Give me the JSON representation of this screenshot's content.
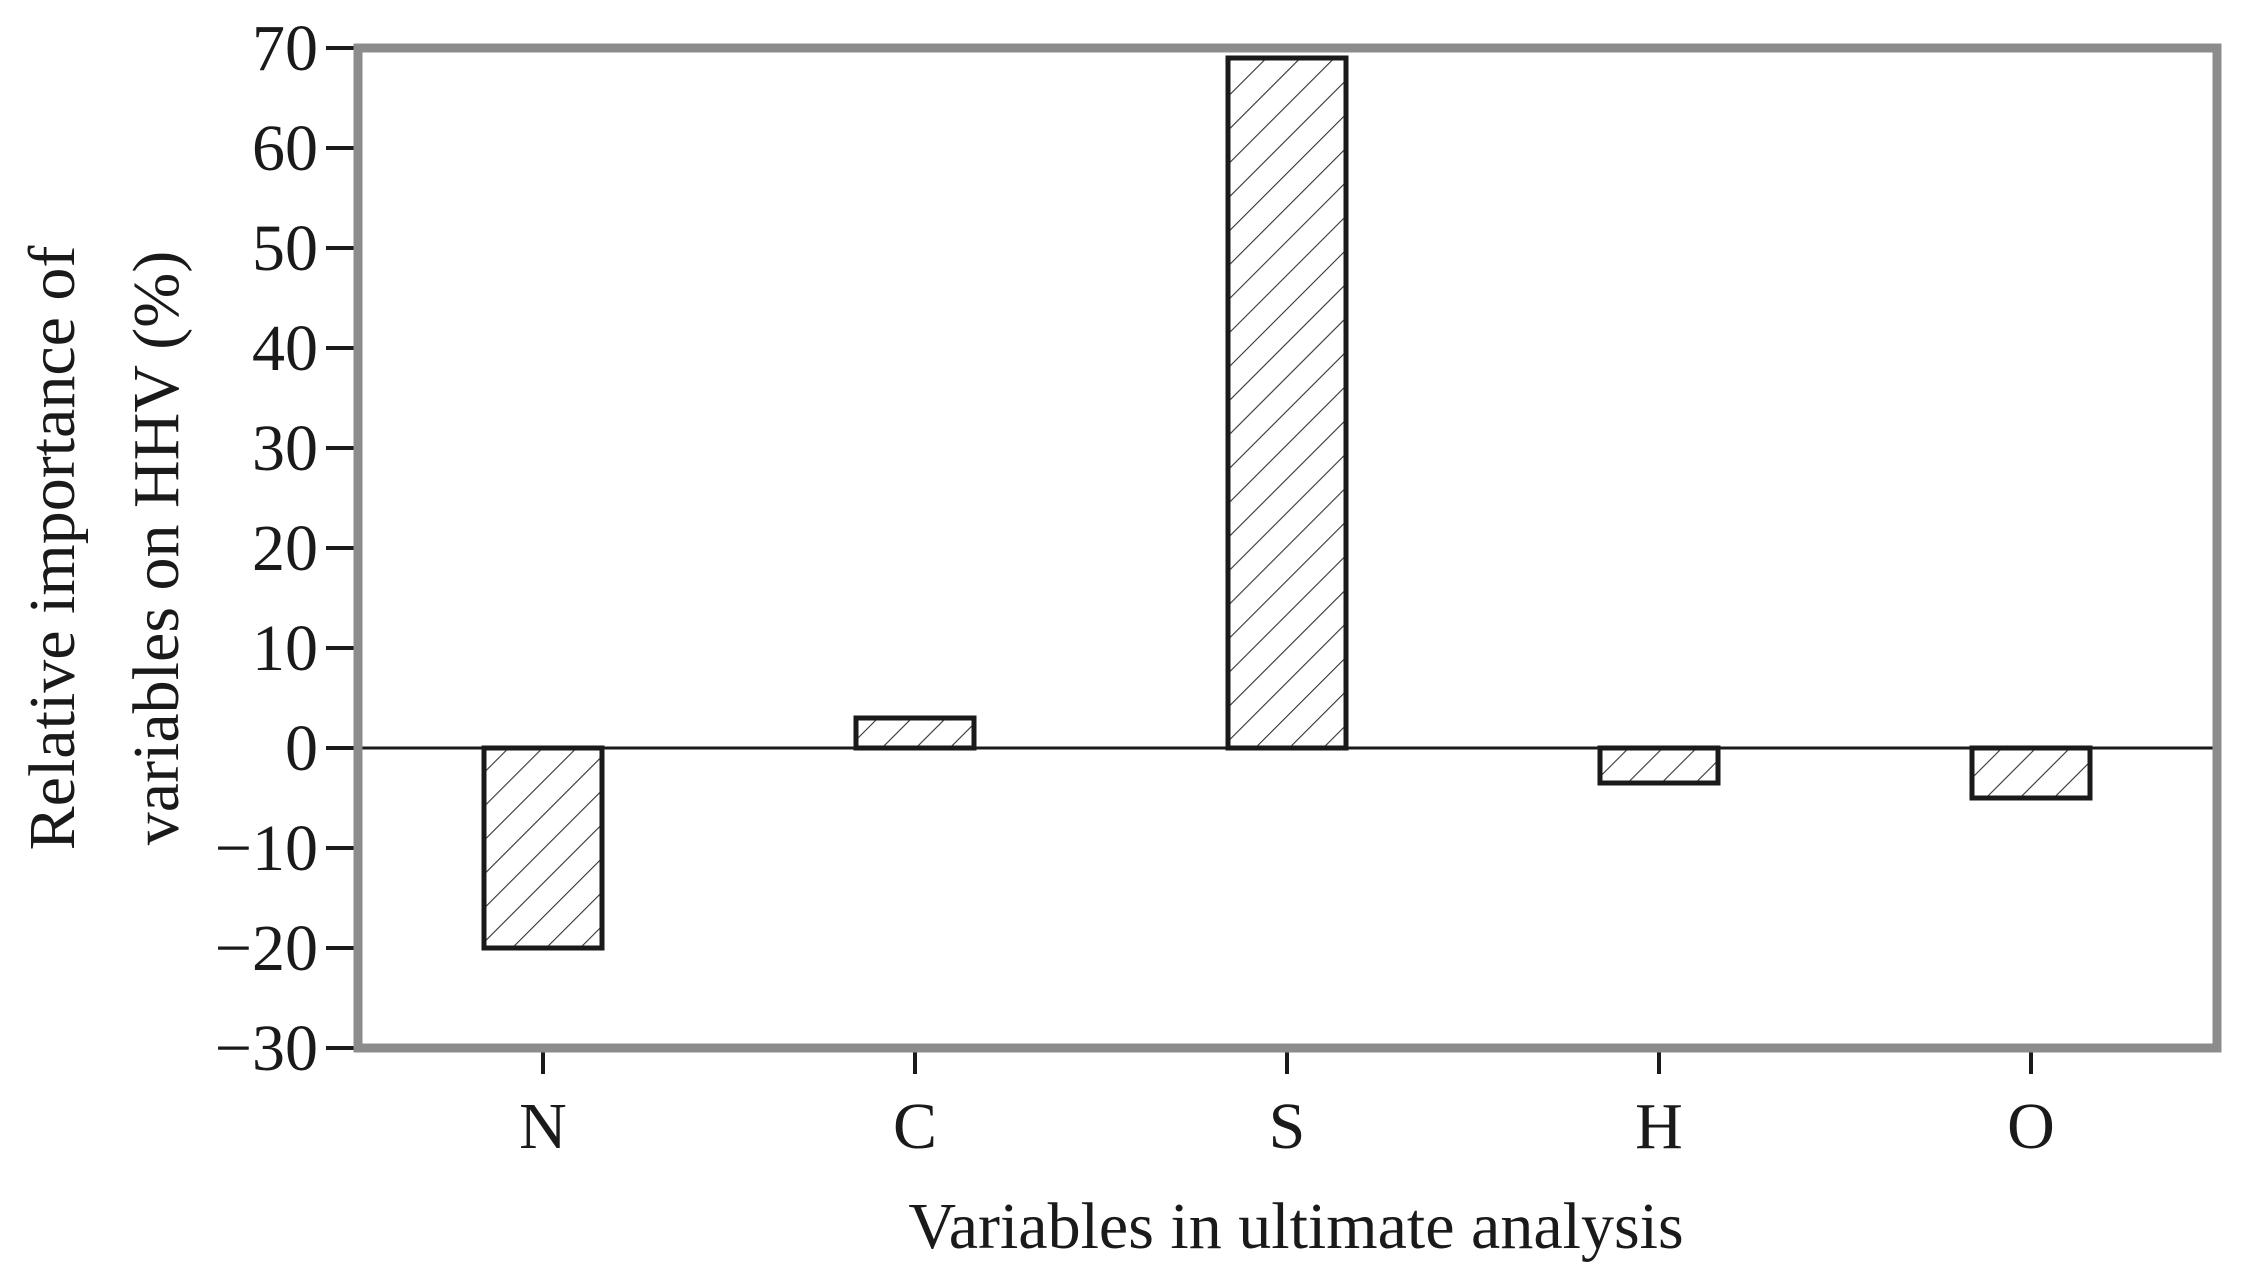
{
  "chart_data": {
    "type": "bar",
    "title": "",
    "xlabel": "Variables in ultimate analysis",
    "ylabel_lines": [
      "Relative importance of",
      "variables on HHV (%)"
    ],
    "categories": [
      "N",
      "C",
      "S",
      "H",
      "O"
    ],
    "values": [
      -20,
      3,
      69,
      -3.5,
      -5
    ],
    "ylim": [
      -30,
      70
    ],
    "yticks": [
      70,
      60,
      50,
      40,
      30,
      20,
      10,
      0,
      -10,
      -20,
      -30
    ],
    "ytick_labels": [
      "70",
      "60",
      "50",
      "40",
      "30",
      "20",
      "10",
      "0",
      "−10",
      "−20",
      "−30"
    ],
    "grid": false,
    "legend": "none",
    "bar_fill": "hatched",
    "colors": {
      "frame": "#8c8c8c",
      "bar_edge": "#1a1a1a",
      "hatch": "#333333",
      "zero_line": "#1a1a1a"
    }
  }
}
